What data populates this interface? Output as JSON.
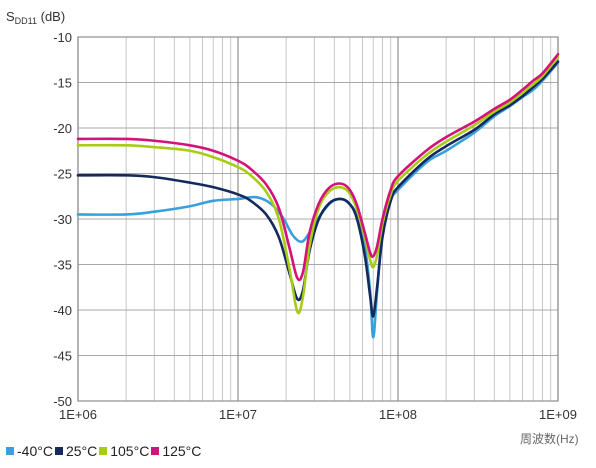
{
  "chart_data": {
    "type": "line",
    "ylabel": {
      "main": "S",
      "sub": "DD11",
      "unit": " (dB)"
    },
    "xlabel": "周波数(Hz)",
    "xscale": "log",
    "xlim": [
      1000000,
      1000000000
    ],
    "ylim": [
      -50,
      -10
    ],
    "grid": true,
    "legend_position": "bottom-left",
    "x_tick_labels": [
      "1E+06",
      "1E+07",
      "1E+08",
      "1E+09"
    ],
    "x_tick_values": [
      1000000,
      10000000,
      100000000,
      1000000000
    ],
    "y_ticks": [
      -10,
      -15,
      -20,
      -25,
      -30,
      -35,
      -40,
      -45,
      -50
    ],
    "series": [
      {
        "name": "-40°C",
        "color": "#3aa0dc",
        "points": [
          [
            1000000,
            -29.5
          ],
          [
            2000000,
            -29.5
          ],
          [
            3000000,
            -29.2
          ],
          [
            5000000,
            -28.6
          ],
          [
            7000000,
            -28.0
          ],
          [
            10000000,
            -27.8
          ],
          [
            13000000,
            -27.6
          ],
          [
            16000000,
            -28.3
          ],
          [
            19000000,
            -29.8
          ],
          [
            22000000,
            -31.8
          ],
          [
            25000000,
            -32.5
          ],
          [
            28000000,
            -31.5
          ],
          [
            33000000,
            -29.5
          ],
          [
            38000000,
            -28.2
          ],
          [
            43000000,
            -27.8
          ],
          [
            48000000,
            -28.1
          ],
          [
            55000000,
            -29.5
          ],
          [
            62000000,
            -33.0
          ],
          [
            67000000,
            -38.0
          ],
          [
            70000000,
            -43.0
          ],
          [
            74000000,
            -38.0
          ],
          [
            80000000,
            -31.5
          ],
          [
            90000000,
            -28.0
          ],
          [
            100000000,
            -26.8
          ],
          [
            150000000,
            -23.8
          ],
          [
            200000000,
            -22.5
          ],
          [
            300000000,
            -20.5
          ],
          [
            400000000,
            -18.7
          ],
          [
            500000000,
            -17.6
          ],
          [
            600000000,
            -16.6
          ],
          [
            700000000,
            -15.8
          ],
          [
            800000000,
            -14.8
          ],
          [
            1000000000,
            -12.8
          ]
        ]
      },
      {
        "name": "25°C",
        "color": "#142a5c",
        "points": [
          [
            1000000,
            -25.2
          ],
          [
            2000000,
            -25.2
          ],
          [
            3000000,
            -25.4
          ],
          [
            5000000,
            -26.0
          ],
          [
            7000000,
            -26.5
          ],
          [
            10000000,
            -27.3
          ],
          [
            12000000,
            -28.0
          ],
          [
            15000000,
            -29.5
          ],
          [
            18000000,
            -32.0
          ],
          [
            21000000,
            -36.0
          ],
          [
            23500000,
            -38.8
          ],
          [
            25500000,
            -37.8
          ],
          [
            28000000,
            -33.5
          ],
          [
            32000000,
            -30.0
          ],
          [
            37000000,
            -28.3
          ],
          [
            43000000,
            -27.8
          ],
          [
            49000000,
            -28.2
          ],
          [
            55000000,
            -29.8
          ],
          [
            62000000,
            -34.0
          ],
          [
            67000000,
            -38.5
          ],
          [
            70000000,
            -40.7
          ],
          [
            74000000,
            -37.5
          ],
          [
            80000000,
            -32.0
          ],
          [
            90000000,
            -28.0
          ],
          [
            100000000,
            -26.5
          ],
          [
            150000000,
            -23.5
          ],
          [
            200000000,
            -22.0
          ],
          [
            300000000,
            -20.2
          ],
          [
            400000000,
            -18.5
          ],
          [
            500000000,
            -17.5
          ],
          [
            600000000,
            -16.5
          ],
          [
            700000000,
            -15.5
          ],
          [
            800000000,
            -14.6
          ],
          [
            1000000000,
            -12.7
          ]
        ]
      },
      {
        "name": "105°C",
        "color": "#a8cc14",
        "points": [
          [
            1000000,
            -21.9
          ],
          [
            2000000,
            -21.9
          ],
          [
            3000000,
            -22.1
          ],
          [
            5000000,
            -22.5
          ],
          [
            7000000,
            -23.2
          ],
          [
            10000000,
            -24.3
          ],
          [
            12000000,
            -25.2
          ],
          [
            15000000,
            -27.0
          ],
          [
            18000000,
            -30.0
          ],
          [
            21000000,
            -35.5
          ],
          [
            23500000,
            -40.2
          ],
          [
            25500000,
            -38.5
          ],
          [
            28000000,
            -33.0
          ],
          [
            32000000,
            -28.8
          ],
          [
            37000000,
            -27.0
          ],
          [
            43000000,
            -26.5
          ],
          [
            49000000,
            -27.0
          ],
          [
            55000000,
            -28.8
          ],
          [
            62000000,
            -32.0
          ],
          [
            67000000,
            -34.5
          ],
          [
            70000000,
            -35.3
          ],
          [
            74000000,
            -34.0
          ],
          [
            80000000,
            -30.5
          ],
          [
            90000000,
            -27.3
          ],
          [
            100000000,
            -25.8
          ],
          [
            150000000,
            -23.0
          ],
          [
            200000000,
            -21.5
          ],
          [
            300000000,
            -19.7
          ],
          [
            400000000,
            -18.2
          ],
          [
            500000000,
            -17.2
          ],
          [
            600000000,
            -16.1
          ],
          [
            700000000,
            -15.2
          ],
          [
            800000000,
            -14.3
          ],
          [
            1000000000,
            -12.2
          ]
        ]
      },
      {
        "name": "125°C",
        "color": "#d4127a",
        "points": [
          [
            1000000,
            -21.2
          ],
          [
            2000000,
            -21.2
          ],
          [
            3000000,
            -21.4
          ],
          [
            5000000,
            -21.9
          ],
          [
            7000000,
            -22.5
          ],
          [
            10000000,
            -23.6
          ],
          [
            12000000,
            -24.5
          ],
          [
            15000000,
            -26.2
          ],
          [
            18000000,
            -28.8
          ],
          [
            21000000,
            -33.2
          ],
          [
            23500000,
            -36.5
          ],
          [
            25500000,
            -35.8
          ],
          [
            28000000,
            -31.5
          ],
          [
            32000000,
            -28.3
          ],
          [
            37000000,
            -26.6
          ],
          [
            43000000,
            -26.1
          ],
          [
            49000000,
            -26.6
          ],
          [
            55000000,
            -28.3
          ],
          [
            62000000,
            -31.5
          ],
          [
            67000000,
            -33.7
          ],
          [
            70000000,
            -34.1
          ],
          [
            74000000,
            -33.0
          ],
          [
            80000000,
            -30.0
          ],
          [
            90000000,
            -26.8
          ],
          [
            100000000,
            -25.3
          ],
          [
            150000000,
            -22.5
          ],
          [
            200000000,
            -21.0
          ],
          [
            300000000,
            -19.3
          ],
          [
            400000000,
            -17.9
          ],
          [
            500000000,
            -16.9
          ],
          [
            600000000,
            -15.8
          ],
          [
            700000000,
            -14.8
          ],
          [
            800000000,
            -14.0
          ],
          [
            1000000000,
            -11.9
          ]
        ]
      }
    ]
  }
}
